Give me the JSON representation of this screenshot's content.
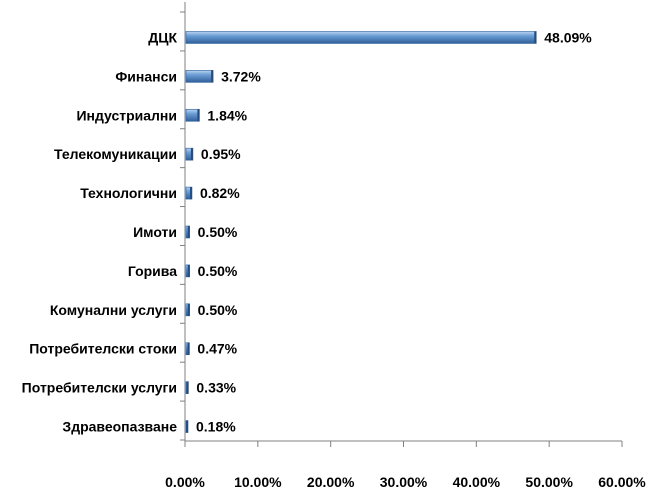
{
  "chart_data": {
    "type": "bar",
    "orientation": "horizontal",
    "categories": [
      "ДЦК",
      "Финанси",
      "Индустриални",
      "Телекомуникации",
      "Технологични",
      "Имоти",
      "Горива",
      "Комунални услуги",
      "Потребителски стоки",
      "Потребителски услуги",
      "Здравеопазване"
    ],
    "values": [
      48.09,
      3.72,
      1.84,
      0.95,
      0.82,
      0.5,
      0.5,
      0.5,
      0.47,
      0.33,
      0.18
    ],
    "value_labels": [
      "48.09%",
      "3.72%",
      "1.84%",
      "0.95%",
      "0.82%",
      "0.50%",
      "0.50%",
      "0.50%",
      "0.47%",
      "0.33%",
      "0.18%"
    ],
    "x_ticks": [
      "0.00%",
      "10.00%",
      "20.00%",
      "30.00%",
      "40.00%",
      "50.00%",
      "60.00%"
    ],
    "xlim": [
      0,
      60
    ],
    "grid": false,
    "legend": "none",
    "colors": {
      "bar_main": "#4f81bd",
      "bar_light": "#9dc3e6",
      "bar_dark": "#2f5f9a",
      "axis": "#808080"
    }
  }
}
